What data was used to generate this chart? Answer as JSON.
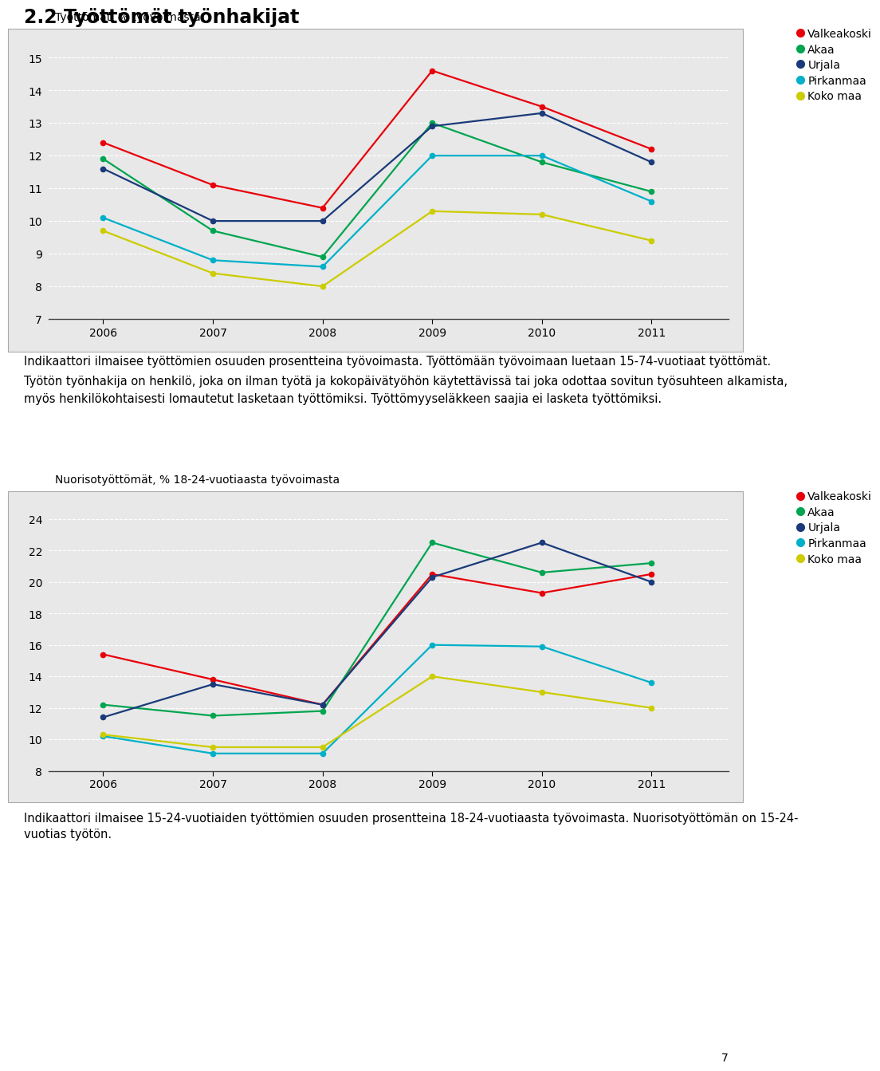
{
  "title": "2.2 Työttömät työnhakijat",
  "chart1": {
    "ylabel": "Työttömät, % työvoimasta",
    "years": [
      2006,
      2007,
      2008,
      2009,
      2010,
      2011
    ],
    "ylim": [
      7,
      15.4
    ],
    "yticks": [
      7,
      8,
      9,
      10,
      11,
      12,
      13,
      14,
      15
    ],
    "series": {
      "Valkeakoski": {
        "color": "#e8000a",
        "data": [
          12.4,
          11.1,
          10.4,
          14.6,
          13.5,
          12.2
        ]
      },
      "Akaa": {
        "color": "#00a550",
        "data": [
          11.9,
          9.7,
          8.9,
          13.0,
          11.8,
          10.9
        ]
      },
      "Urjala": {
        "color": "#1a3a7a",
        "data": [
          11.6,
          10.0,
          10.0,
          12.9,
          13.3,
          11.8
        ]
      },
      "Pirkanmaa": {
        "color": "#00b0c8",
        "data": [
          10.1,
          8.8,
          8.6,
          12.0,
          12.0,
          10.6
        ]
      },
      "Koko maa": {
        "color": "#cccc00",
        "data": [
          9.7,
          8.4,
          8.0,
          10.3,
          10.2,
          9.4
        ]
      }
    }
  },
  "chart2": {
    "ylabel": "Nuorisotyöttömät, % 18-24-vuotiaasta työvoimasta",
    "years": [
      2006,
      2007,
      2008,
      2009,
      2010,
      2011
    ],
    "ylim": [
      8,
      24.8
    ],
    "yticks": [
      8,
      10,
      12,
      14,
      16,
      18,
      20,
      22,
      24
    ],
    "series": {
      "Valkeakoski": {
        "color": "#e8000a",
        "data": [
          15.4,
          13.8,
          12.2,
          20.5,
          19.3,
          20.5
        ]
      },
      "Akaa": {
        "color": "#00a550",
        "data": [
          12.2,
          11.5,
          11.8,
          22.5,
          20.6,
          21.2
        ]
      },
      "Urjala": {
        "color": "#1a3a7a",
        "data": [
          11.4,
          13.5,
          12.2,
          20.3,
          22.5,
          20.0
        ]
      },
      "Pirkanmaa": {
        "color": "#00b0c8",
        "data": [
          10.2,
          9.1,
          9.1,
          16.0,
          15.9,
          13.6
        ]
      },
      "Koko maa": {
        "color": "#cccc00",
        "data": [
          10.3,
          9.5,
          9.5,
          14.0,
          13.0,
          12.0
        ]
      }
    }
  },
  "text_block1_line1": "Indikaattori ilmaisee työttömien osuuden prosentteina työvoimasta. Työttömään työvoimaan luetaan 15-74-vuotiaat työttömät.",
  "text_block1_line2": "Työtön työnhakija on henkilö, joka on ilman työtä ja kokopäivätyöhön käytettävissä tai joka odottaa sovitun työsuhteen alkamista,",
  "text_block1_line3": "myös henkilökohtaisesti lomautetut lasketaan työttömiksi. Työttömyyseläkkeen saajia ei lasketa työttömiksi.",
  "text_block2_line1": "Indikaattori ilmaisee 15-24-vuotiaiden työttömien osuuden prosentteina 18-24-vuotiaasta työvoimasta. Nuorisotyöttömän on 15-24-",
  "text_block2_line2": "vuotias työtön.",
  "footer": "7",
  "bg_color": "#e8e8e8",
  "border_color": "#aaaaaa",
  "grid_color": "#ffffff",
  "text_fontsize": 10.5,
  "tick_fontsize": 10,
  "ylabel_fontsize": 10
}
